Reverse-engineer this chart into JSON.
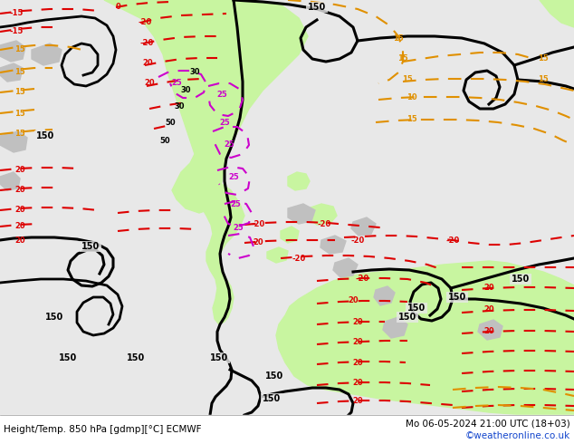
{
  "title_left": "Height/Temp. 850 hPa [gdmp][°C] ECMWF",
  "title_right": "Mo 06-05-2024 21:00 UTC (18+03)",
  "credit": "©weatheronline.co.uk",
  "bg_color": "#e8e8e8",
  "land_green": "#c8f5a0",
  "land_gray": "#c0c0c0",
  "fig_width": 6.34,
  "fig_height": 4.9,
  "dpi": 100
}
